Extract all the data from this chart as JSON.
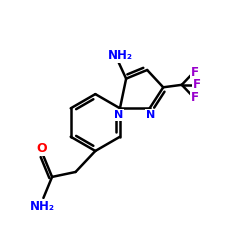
{
  "bg_color": "#ffffff",
  "bond_color": "#000000",
  "bond_width": 1.8,
  "atom_colors": {
    "N": "#0000ff",
    "O": "#ff0000",
    "F": "#9900cc"
  },
  "xlim": [
    0,
    10
  ],
  "ylim": [
    0,
    10
  ]
}
